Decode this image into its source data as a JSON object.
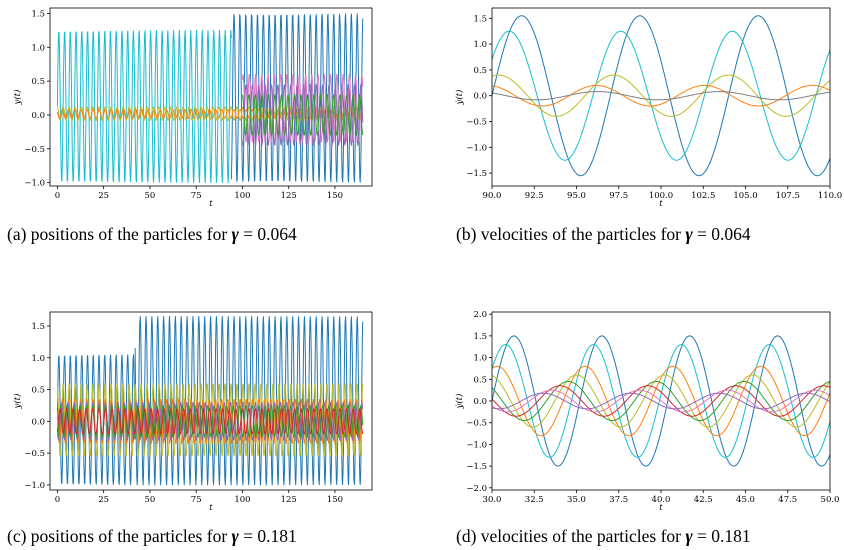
{
  "captions": {
    "a": {
      "prefix": "(a) positions of the particles for ",
      "symbol": "γ",
      "suffix": " = 0.064"
    },
    "b": {
      "prefix": "(b) velocities of the particles for ",
      "symbol": "γ",
      "suffix": " = 0.064"
    },
    "c": {
      "prefix": "(c) positions of the particles for ",
      "symbol": "γ",
      "suffix": " = 0.181"
    },
    "d": {
      "prefix": "(d) velocities of the particles for ",
      "symbol": "γ",
      "suffix": " = 0.181"
    }
  },
  "palette": [
    "#1f77b4",
    "#ff7f0e",
    "#2ca02c",
    "#d62728",
    "#9467bd",
    "#8c564b",
    "#e377c2",
    "#7f7f7f",
    "#bcbd22",
    "#17becf"
  ],
  "chart_data": [
    {
      "id": "a",
      "type": "line",
      "xlabel": "t",
      "ylabel": "y(t)",
      "xlim": [
        -4,
        170
      ],
      "ylim": [
        -1.05,
        1.58
      ],
      "xticks": [
        "0",
        "25",
        "50",
        "75",
        "100",
        "125",
        "150"
      ],
      "xtick_values": [
        0,
        25,
        50,
        75,
        100,
        125,
        150
      ],
      "yticks": [
        "−1.0",
        "−0.5",
        "0.0",
        "0.5",
        "1.0",
        "1.5"
      ],
      "ytick_values": [
        -1.0,
        -0.5,
        0.0,
        0.5,
        1.0,
        1.5
      ],
      "series": [
        {
          "color_index": 9,
          "x": [
            0,
            94
          ],
          "min": -1.0,
          "max": 1.25
        },
        {
          "color_index": 0,
          "x": [
            94,
            165
          ],
          "min": -1.0,
          "max": 1.5
        },
        {
          "color_index": 8,
          "x": [
            0,
            165
          ],
          "min": -0.08,
          "max": 0.12
        },
        {
          "color_index": 1,
          "x": [
            0,
            165
          ],
          "min": -0.05,
          "max": 0.08
        },
        {
          "color_index": 6,
          "x": [
            100,
            165
          ],
          "min": -0.4,
          "max": 0.6
        },
        {
          "color_index": 4,
          "x": [
            100,
            165
          ],
          "min": -0.45,
          "max": 0.45
        },
        {
          "color_index": 2,
          "x": [
            100,
            165
          ],
          "min": -0.3,
          "max": 0.3
        }
      ]
    },
    {
      "id": "b",
      "type": "line",
      "xlabel": "t",
      "ylabel": "ẏ(t)",
      "xlim": [
        90,
        110
      ],
      "ylim": [
        -1.75,
        1.7
      ],
      "xticks": [
        "90.0",
        "92.5",
        "95.0",
        "97.5",
        "100.0",
        "102.5",
        "105.0",
        "107.5",
        "110.0"
      ],
      "xtick_values": [
        90,
        92.5,
        95,
        97.5,
        100,
        102.5,
        105,
        107.5,
        110
      ],
      "yticks": [
        "−1.5",
        "−1.0",
        "−0.5",
        "0.0",
        "0.5",
        "1.0",
        "1.5"
      ],
      "ytick_values": [
        -1.5,
        -1.0,
        -0.5,
        0.0,
        0.5,
        1.0,
        1.5
      ],
      "series": [
        {
          "color_index": 0,
          "amplitude": 1.55,
          "period": 7.0
        },
        {
          "color_index": 9,
          "amplitude": 1.25,
          "period": 6.6
        },
        {
          "color_index": 8,
          "amplitude": 0.4,
          "period": 6.8
        },
        {
          "color_index": 1,
          "amplitude": 0.2,
          "period": 6.4
        },
        {
          "color_index": 7,
          "amplitude": 0.08,
          "period": 7.2
        }
      ]
    },
    {
      "id": "c",
      "type": "line",
      "xlabel": "t",
      "ylabel": "y(t)",
      "xlim": [
        -4,
        170
      ],
      "ylim": [
        -1.08,
        1.72
      ],
      "xticks": [
        "0",
        "25",
        "50",
        "75",
        "100",
        "125",
        "150"
      ],
      "xtick_values": [
        0,
        25,
        50,
        75,
        100,
        125,
        150
      ],
      "yticks": [
        "−1.0",
        "−0.5",
        "0.0",
        "0.5",
        "1.0",
        "1.5"
      ],
      "ytick_values": [
        -1.0,
        -0.5,
        0.0,
        0.5,
        1.0,
        1.5
      ],
      "series": [
        {
          "color_index": 0,
          "x": [
            0,
            42
          ],
          "min": -1.0,
          "max": 1.05
        },
        {
          "color_index": 0,
          "x": [
            42,
            165
          ],
          "min": -1.0,
          "max": 1.65
        },
        {
          "color_index": 8,
          "x": [
            0,
            165
          ],
          "min": -0.55,
          "max": 0.6
        },
        {
          "color_index": 1,
          "x": [
            0,
            165
          ],
          "min": -0.35,
          "max": 0.35
        },
        {
          "color_index": 4,
          "x": [
            0,
            165
          ],
          "min": -0.3,
          "max": 0.3
        },
        {
          "color_index": 2,
          "x": [
            0,
            165
          ],
          "min": -0.25,
          "max": 0.25
        },
        {
          "color_index": 3,
          "x": [
            0,
            165
          ],
          "min": -0.2,
          "max": 0.2
        }
      ]
    },
    {
      "id": "d",
      "type": "line",
      "xlabel": "t",
      "ylabel": "ẏ(t)",
      "xlim": [
        30,
        50
      ],
      "ylim": [
        -2.05,
        2.05
      ],
      "xticks": [
        "30.0",
        "32.5",
        "35.0",
        "37.5",
        "40.0",
        "42.5",
        "45.0",
        "47.5",
        "50.0"
      ],
      "xtick_values": [
        30,
        32.5,
        35,
        37.5,
        40,
        42.5,
        45,
        47.5,
        50
      ],
      "yticks": [
        "−2.0",
        "−1.5",
        "−1.0",
        "−0.5",
        "0.0",
        "0.5",
        "1.0",
        "1.5",
        "2.0"
      ],
      "ytick_values": [
        -2.0,
        -1.5,
        -1.0,
        -0.5,
        0.0,
        0.5,
        1.0,
        1.5,
        2.0
      ],
      "series": [
        {
          "color_index": 0,
          "amplitude": 1.5,
          "period": 5.2
        },
        {
          "color_index": 9,
          "amplitude": 1.3,
          "period": 5.2
        },
        {
          "color_index": 1,
          "amplitude": 0.8,
          "period": 5.2
        },
        {
          "color_index": 8,
          "amplitude": 0.6,
          "period": 5.2
        },
        {
          "color_index": 2,
          "amplitude": 0.45,
          "period": 5.2
        },
        {
          "color_index": 3,
          "amplitude": 0.35,
          "period": 5.2
        },
        {
          "color_index": 6,
          "amplitude": 0.25,
          "period": 5.2
        },
        {
          "color_index": 4,
          "amplitude": 0.18,
          "period": 5.2
        }
      ]
    }
  ]
}
